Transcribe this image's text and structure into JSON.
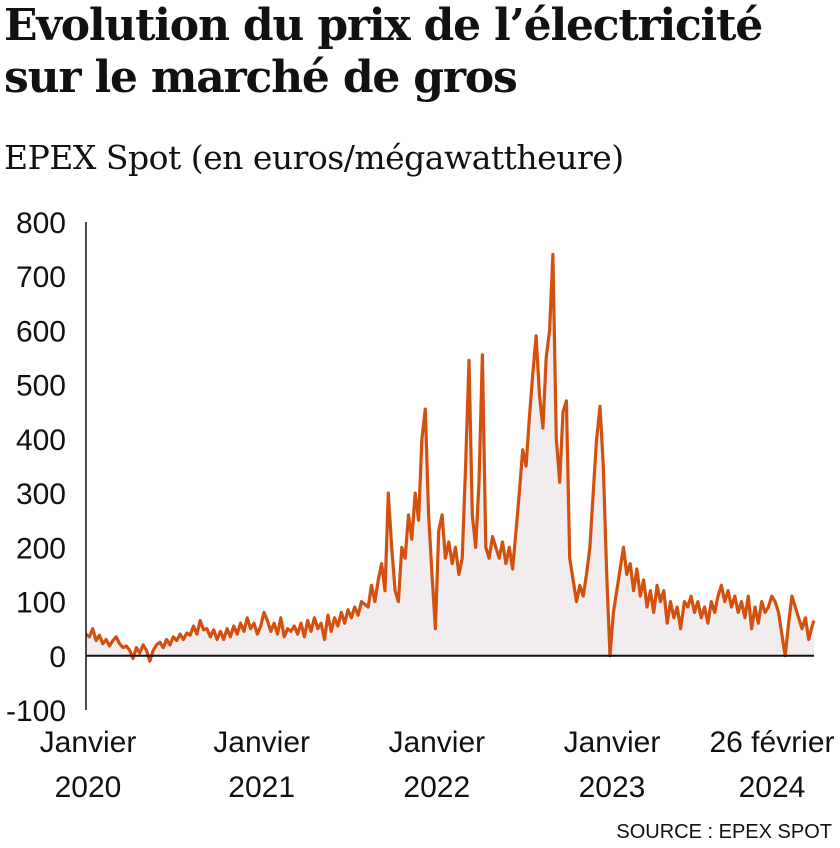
{
  "chart_data": {
    "type": "area",
    "title": "Evolution du prix de l’électricité sur le marché de gros",
    "subtitle": "EPEX Spot (en euros/mégawattheure)",
    "source": "SOURCE : EPEX SPOT",
    "ylim": [
      -100,
      800
    ],
    "yticks": [
      -100,
      0,
      100,
      200,
      300,
      400,
      500,
      600,
      700,
      800
    ],
    "xlim": [
      "2020-01-01",
      "2024-02-26"
    ],
    "xticks": [
      {
        "date": "2020-01-01",
        "line1": "Janvier",
        "line2": "2020"
      },
      {
        "date": "2021-01-01",
        "line1": "Janvier",
        "line2": "2021"
      },
      {
        "date": "2022-01-01",
        "line1": "Janvier",
        "line2": "2022"
      },
      {
        "date": "2023-01-01",
        "line1": "Janvier",
        "line2": "2023"
      },
      {
        "date": "2024-02-26",
        "line1": "26 février",
        "line2": "2024"
      }
    ],
    "colors": {
      "line": "#d4500f",
      "fill": "#f1ecee",
      "axis": "#111111"
    },
    "series": [
      {
        "values": [
          [
            "2020-01-01",
            40
          ],
          [
            "2020-01-08",
            35
          ],
          [
            "2020-01-15",
            50
          ],
          [
            "2020-01-22",
            28
          ],
          [
            "2020-01-29",
            38
          ],
          [
            "2020-02-05",
            22
          ],
          [
            "2020-02-12",
            30
          ],
          [
            "2020-02-19",
            18
          ],
          [
            "2020-02-26",
            28
          ],
          [
            "2020-03-04",
            35
          ],
          [
            "2020-03-11",
            22
          ],
          [
            "2020-03-18",
            15
          ],
          [
            "2020-03-25",
            18
          ],
          [
            "2020-04-01",
            10
          ],
          [
            "2020-04-08",
            -5
          ],
          [
            "2020-04-15",
            15
          ],
          [
            "2020-04-22",
            5
          ],
          [
            "2020-04-29",
            20
          ],
          [
            "2020-05-06",
            10
          ],
          [
            "2020-05-13",
            -10
          ],
          [
            "2020-05-20",
            10
          ],
          [
            "2020-05-27",
            20
          ],
          [
            "2020-06-03",
            25
          ],
          [
            "2020-06-10",
            15
          ],
          [
            "2020-06-17",
            30
          ],
          [
            "2020-06-24",
            20
          ],
          [
            "2020-07-01",
            35
          ],
          [
            "2020-07-08",
            28
          ],
          [
            "2020-07-15",
            40
          ],
          [
            "2020-07-22",
            30
          ],
          [
            "2020-07-29",
            42
          ],
          [
            "2020-08-05",
            38
          ],
          [
            "2020-08-12",
            55
          ],
          [
            "2020-08-19",
            40
          ],
          [
            "2020-08-26",
            65
          ],
          [
            "2020-09-02",
            48
          ],
          [
            "2020-09-09",
            50
          ],
          [
            "2020-09-16",
            35
          ],
          [
            "2020-09-23",
            48
          ],
          [
            "2020-09-30",
            30
          ],
          [
            "2020-10-07",
            45
          ],
          [
            "2020-10-14",
            30
          ],
          [
            "2020-10-21",
            50
          ],
          [
            "2020-10-28",
            35
          ],
          [
            "2020-11-04",
            55
          ],
          [
            "2020-11-11",
            40
          ],
          [
            "2020-11-18",
            60
          ],
          [
            "2020-11-25",
            45
          ],
          [
            "2020-12-02",
            70
          ],
          [
            "2020-12-09",
            50
          ],
          [
            "2020-12-16",
            60
          ],
          [
            "2020-12-23",
            40
          ],
          [
            "2020-12-30",
            55
          ],
          [
            "2021-01-06",
            80
          ],
          [
            "2021-01-13",
            65
          ],
          [
            "2021-01-20",
            45
          ],
          [
            "2021-01-27",
            60
          ],
          [
            "2021-02-03",
            40
          ],
          [
            "2021-02-10",
            70
          ],
          [
            "2021-02-17",
            35
          ],
          [
            "2021-02-24",
            50
          ],
          [
            "2021-03-03",
            45
          ],
          [
            "2021-03-10",
            55
          ],
          [
            "2021-03-17",
            40
          ],
          [
            "2021-03-24",
            60
          ],
          [
            "2021-03-31",
            35
          ],
          [
            "2021-04-07",
            65
          ],
          [
            "2021-04-14",
            45
          ],
          [
            "2021-04-21",
            70
          ],
          [
            "2021-04-28",
            50
          ],
          [
            "2021-05-05",
            60
          ],
          [
            "2021-05-12",
            30
          ],
          [
            "2021-05-19",
            75
          ],
          [
            "2021-05-26",
            45
          ],
          [
            "2021-06-02",
            70
          ],
          [
            "2021-06-09",
            55
          ],
          [
            "2021-06-16",
            80
          ],
          [
            "2021-06-23",
            60
          ],
          [
            "2021-06-30",
            85
          ],
          [
            "2021-07-07",
            70
          ],
          [
            "2021-07-14",
            90
          ],
          [
            "2021-07-21",
            75
          ],
          [
            "2021-07-28",
            100
          ],
          [
            "2021-08-04",
            95
          ],
          [
            "2021-08-11",
            90
          ],
          [
            "2021-08-18",
            130
          ],
          [
            "2021-08-25",
            100
          ],
          [
            "2021-09-01",
            140
          ],
          [
            "2021-09-08",
            170
          ],
          [
            "2021-09-15",
            120
          ],
          [
            "2021-09-22",
            300
          ],
          [
            "2021-09-29",
            200
          ],
          [
            "2021-10-06",
            120
          ],
          [
            "2021-10-13",
            100
          ],
          [
            "2021-10-20",
            200
          ],
          [
            "2021-10-27",
            180
          ],
          [
            "2021-11-03",
            260
          ],
          [
            "2021-11-10",
            215
          ],
          [
            "2021-11-17",
            300
          ],
          [
            "2021-11-24",
            250
          ],
          [
            "2021-12-01",
            400
          ],
          [
            "2021-12-08",
            455
          ],
          [
            "2021-12-15",
            260
          ],
          [
            "2021-12-22",
            150
          ],
          [
            "2021-12-29",
            50
          ],
          [
            "2022-01-05",
            230
          ],
          [
            "2022-01-12",
            260
          ],
          [
            "2022-01-19",
            180
          ],
          [
            "2022-01-26",
            210
          ],
          [
            "2022-02-02",
            170
          ],
          [
            "2022-02-09",
            200
          ],
          [
            "2022-02-16",
            150
          ],
          [
            "2022-02-23",
            180
          ],
          [
            "2022-03-02",
            350
          ],
          [
            "2022-03-09",
            545
          ],
          [
            "2022-03-16",
            260
          ],
          [
            "2022-03-23",
            200
          ],
          [
            "2022-03-30",
            320
          ],
          [
            "2022-04-06",
            555
          ],
          [
            "2022-04-13",
            200
          ],
          [
            "2022-04-20",
            180
          ],
          [
            "2022-04-27",
            220
          ],
          [
            "2022-05-04",
            200
          ],
          [
            "2022-05-11",
            180
          ],
          [
            "2022-05-18",
            210
          ],
          [
            "2022-05-25",
            170
          ],
          [
            "2022-06-01",
            200
          ],
          [
            "2022-06-08",
            160
          ],
          [
            "2022-06-15",
            230
          ],
          [
            "2022-06-22",
            300
          ],
          [
            "2022-06-29",
            380
          ],
          [
            "2022-07-06",
            350
          ],
          [
            "2022-07-13",
            440
          ],
          [
            "2022-07-20",
            520
          ],
          [
            "2022-07-27",
            590
          ],
          [
            "2022-08-03",
            480
          ],
          [
            "2022-08-10",
            420
          ],
          [
            "2022-08-17",
            550
          ],
          [
            "2022-08-24",
            600
          ],
          [
            "2022-08-31",
            740
          ],
          [
            "2022-09-07",
            400
          ],
          [
            "2022-09-14",
            320
          ],
          [
            "2022-09-21",
            450
          ],
          [
            "2022-09-28",
            470
          ],
          [
            "2022-10-05",
            180
          ],
          [
            "2022-10-12",
            140
          ],
          [
            "2022-10-19",
            100
          ],
          [
            "2022-10-26",
            130
          ],
          [
            "2022-11-02",
            110
          ],
          [
            "2022-11-09",
            150
          ],
          [
            "2022-11-16",
            200
          ],
          [
            "2022-11-23",
            300
          ],
          [
            "2022-11-30",
            400
          ],
          [
            "2022-12-07",
            460
          ],
          [
            "2022-12-14",
            350
          ],
          [
            "2022-12-21",
            150
          ],
          [
            "2022-12-28",
            0
          ],
          [
            "2023-01-04",
            80
          ],
          [
            "2023-01-11",
            120
          ],
          [
            "2023-01-18",
            160
          ],
          [
            "2023-01-25",
            200
          ],
          [
            "2023-02-01",
            150
          ],
          [
            "2023-02-08",
            170
          ],
          [
            "2023-02-15",
            120
          ],
          [
            "2023-02-22",
            160
          ],
          [
            "2023-03-01",
            110
          ],
          [
            "2023-03-08",
            140
          ],
          [
            "2023-03-15",
            90
          ],
          [
            "2023-03-22",
            120
          ],
          [
            "2023-03-29",
            80
          ],
          [
            "2023-04-05",
            130
          ],
          [
            "2023-04-12",
            100
          ],
          [
            "2023-04-19",
            120
          ],
          [
            "2023-04-26",
            60
          ],
          [
            "2023-05-03",
            100
          ],
          [
            "2023-05-10",
            70
          ],
          [
            "2023-05-17",
            90
          ],
          [
            "2023-05-24",
            50
          ],
          [
            "2023-06-01",
            100
          ],
          [
            "2023-06-08",
            90
          ],
          [
            "2023-06-15",
            110
          ],
          [
            "2023-06-22",
            80
          ],
          [
            "2023-06-29",
            100
          ],
          [
            "2023-07-06",
            70
          ],
          [
            "2023-07-13",
            90
          ],
          [
            "2023-07-20",
            60
          ],
          [
            "2023-07-27",
            100
          ],
          [
            "2023-08-03",
            80
          ],
          [
            "2023-08-10",
            110
          ],
          [
            "2023-08-17",
            130
          ],
          [
            "2023-08-24",
            100
          ],
          [
            "2023-08-31",
            120
          ],
          [
            "2023-09-07",
            90
          ],
          [
            "2023-09-14",
            110
          ],
          [
            "2023-09-21",
            80
          ],
          [
            "2023-09-28",
            100
          ],
          [
            "2023-10-05",
            70
          ],
          [
            "2023-10-12",
            110
          ],
          [
            "2023-10-19",
            50
          ],
          [
            "2023-10-26",
            90
          ],
          [
            "2023-11-02",
            60
          ],
          [
            "2023-11-09",
            100
          ],
          [
            "2023-11-16",
            80
          ],
          [
            "2023-11-23",
            90
          ],
          [
            "2023-11-30",
            110
          ],
          [
            "2023-12-07",
            100
          ],
          [
            "2023-12-14",
            80
          ],
          [
            "2023-12-21",
            40
          ],
          [
            "2023-12-28",
            0
          ],
          [
            "2024-01-04",
            60
          ],
          [
            "2024-01-11",
            110
          ],
          [
            "2024-01-18",
            90
          ],
          [
            "2024-01-25",
            70
          ],
          [
            "2024-02-01",
            50
          ],
          [
            "2024-02-08",
            70
          ],
          [
            "2024-02-15",
            30
          ],
          [
            "2024-02-22",
            55
          ],
          [
            "2024-02-26",
            65
          ]
        ]
      }
    ]
  }
}
